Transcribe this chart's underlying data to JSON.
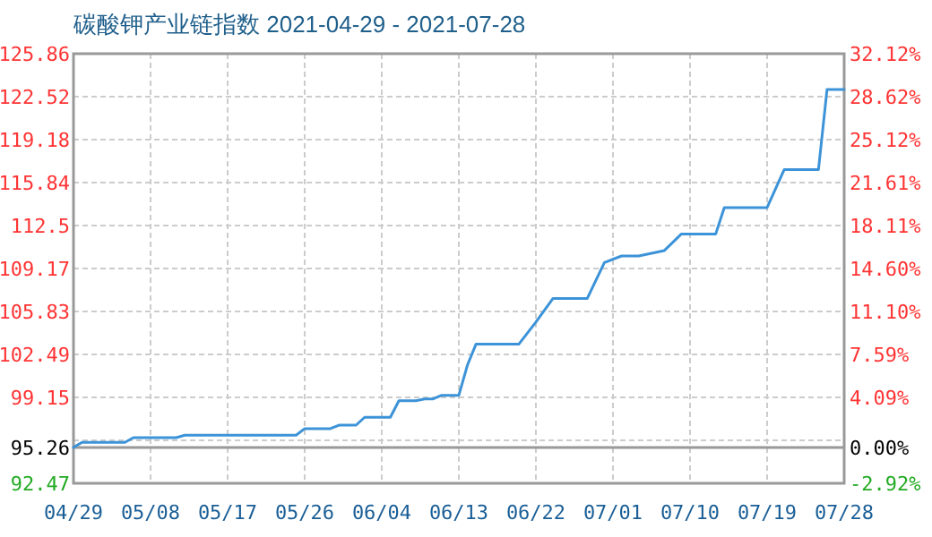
{
  "chart_data": {
    "type": "line",
    "title": "碳酸钾产业链指数 2021-04-29 - 2021-07-28",
    "x": [
      "2021-04-29",
      "2021-04-30",
      "2021-05-05",
      "2021-05-06",
      "2021-05-11",
      "2021-05-12",
      "2021-05-25",
      "2021-05-26",
      "2021-05-29",
      "2021-05-30",
      "2021-06-01",
      "2021-06-02",
      "2021-06-05",
      "2021-06-06",
      "2021-06-08",
      "2021-06-09",
      "2021-06-10",
      "2021-06-11",
      "2021-06-13",
      "2021-06-14",
      "2021-06-15",
      "2021-06-20",
      "2021-06-22",
      "2021-06-24",
      "2021-06-28",
      "2021-06-30",
      "2021-07-02",
      "2021-07-04",
      "2021-07-07",
      "2021-07-09",
      "2021-07-13",
      "2021-07-14",
      "2021-07-19",
      "2021-07-21",
      "2021-07-25",
      "2021-07-26",
      "2021-07-28"
    ],
    "series": [
      {
        "color": "#3d93d8",
        "values": [
          95.26,
          95.65,
          95.65,
          96.02,
          96.02,
          96.21,
          96.21,
          96.72,
          96.72,
          96.99,
          96.99,
          97.6,
          97.6,
          98.89,
          98.89,
          99.03,
          99.03,
          99.31,
          99.31,
          101.65,
          103.28,
          103.28,
          105.0,
          106.84,
          106.84,
          109.62,
          110.14,
          110.14,
          110.56,
          111.85,
          111.85,
          113.9,
          113.9,
          116.86,
          116.86,
          123.08,
          123.08
        ]
      }
    ],
    "xlim": [
      "2021-04-29",
      "2021-07-28"
    ],
    "xticks": [
      {
        "value": "2021-04-29",
        "label": "04/29"
      },
      {
        "value": "2021-05-08",
        "label": "05/08"
      },
      {
        "value": "2021-05-17",
        "label": "05/17"
      },
      {
        "value": "2021-05-26",
        "label": "05/26"
      },
      {
        "value": "2021-06-04",
        "label": "06/04"
      },
      {
        "value": "2021-06-13",
        "label": "06/13"
      },
      {
        "value": "2021-06-22",
        "label": "06/22"
      },
      {
        "value": "2021-07-01",
        "label": "07/01"
      },
      {
        "value": "2021-07-10",
        "label": "07/10"
      },
      {
        "value": "2021-07-19",
        "label": "07/19"
      },
      {
        "value": "2021-07-28",
        "label": "07/28"
      }
    ],
    "ylim": [
      92.47,
      125.86
    ],
    "yticks": [
      125.86,
      122.52,
      119.18,
      115.84,
      {
        "value": 112.5,
        "label": "112.5"
      },
      109.17,
      105.83,
      102.49,
      99.15,
      {
        "value": 95.81,
        "label": null
      },
      95.26,
      92.47
    ],
    "y2lim": [
      -2.92,
      32.12
    ],
    "y2ticks": [
      {
        "value": 32.12,
        "label": "32.12%"
      },
      {
        "value": 28.62,
        "label": "28.62%"
      },
      {
        "value": 25.12,
        "label": "25.12%"
      },
      {
        "value": 21.61,
        "label": "21.61%"
      },
      {
        "value": 18.11,
        "label": "18.11%"
      },
      {
        "value": 14.6,
        "label": "14.60%"
      },
      {
        "value": 11.1,
        "label": "11.10%"
      },
      {
        "value": 7.59,
        "label": "7.59%"
      },
      {
        "value": 4.09,
        "label": "4.09%"
      },
      {
        "value": 0,
        "label": "0.00%"
      },
      {
        "value": -2.92,
        "label": "-2.92%"
      }
    ],
    "grid": true,
    "ref_lines": [
      {
        "axis": "y2",
        "value": 0,
        "color": "#999999",
        "line_style": "solid"
      }
    ]
  }
}
